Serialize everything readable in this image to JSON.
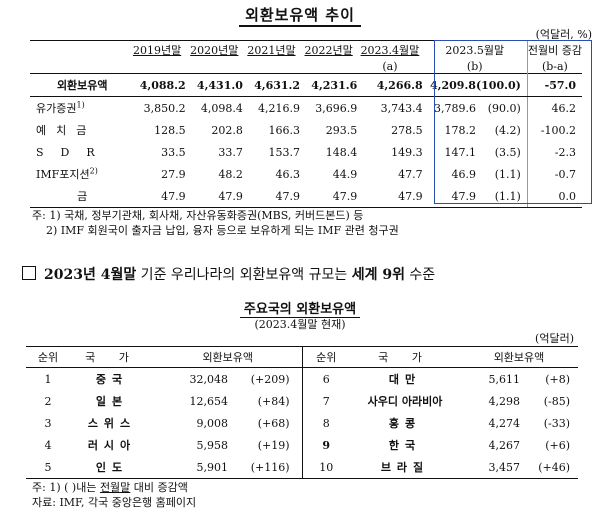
{
  "title": "외환보유액 추이",
  "unit": "(억달러, %)",
  "table": {
    "headers": {
      "years": [
        "2019년말",
        "2020년말",
        "2021년말",
        "2022년말"
      ],
      "apr": "2023.4월말",
      "apr_sub": "(a)",
      "may": "2023.5월말",
      "may_sub": "(b)",
      "diff": "전월비 증감",
      "diff_sub": "(b-a)"
    },
    "total": {
      "label": "외환보유액",
      "values": [
        "4,088.2",
        "4,431.0",
        "4,631.2",
        "4,231.6",
        "4,266.8",
        "4,209.8"
      ],
      "share": "(100.0)",
      "diff": "-57.0"
    },
    "rows": [
      {
        "label": "유가증권",
        "sup": "1)",
        "values": [
          "3,850.2",
          "4,098.4",
          "4,216.9",
          "3,696.9",
          "3,743.4",
          "3,789.6"
        ],
        "share": "(90.0)",
        "diff": "46.2"
      },
      {
        "label": "예치금",
        "sup": "",
        "values": [
          "128.5",
          "202.8",
          "166.3",
          "293.5",
          "278.5",
          "178.2"
        ],
        "share": "(4.2)",
        "diff": "-100.2"
      },
      {
        "label": "SDR",
        "sup": "",
        "values": [
          "33.5",
          "33.7",
          "153.7",
          "148.4",
          "149.3",
          "147.1"
        ],
        "share": "(3.5)",
        "diff": "-2.3"
      },
      {
        "label": "IMF포지션",
        "sup": "2)",
        "values": [
          "27.9",
          "48.2",
          "46.3",
          "44.9",
          "47.7",
          "46.9"
        ],
        "share": "(1.1)",
        "diff": "-0.7"
      },
      {
        "label": "금",
        "sup": "",
        "values": [
          "47.9",
          "47.9",
          "47.9",
          "47.9",
          "47.9",
          "47.9"
        ],
        "share": "(1.1)",
        "diff": "0.0"
      }
    ]
  },
  "notes1": [
    "주: 1) 국채, 정부기관채, 회사채, 자산유동화증권(MBS, 커버드본드) 등",
    "2) IMF 회원국이 출자금 납입, 융자 등으로 보유하게 되는 IMF 관련 청구권"
  ],
  "headline": {
    "pre": "2023년 4월말",
    "mid": " 기준 우리나라의 외환보유액 규모는 ",
    "bold": "세계 9위",
    "post": " 수준"
  },
  "ranking": {
    "title": "주요국의 외환보유액",
    "subtitle": "(2023.4월말 현재)",
    "unit": "(억달러)",
    "headers": {
      "rank": "순위",
      "country": "국 가",
      "reserves": "외환보유액"
    },
    "rows": [
      {
        "left": {
          "rank": "1",
          "country": "중국",
          "amount": "32,048",
          "change": "(+209)"
        },
        "right": {
          "rank": "6",
          "country": "대만",
          "amount": "5,611",
          "change": "(+8)"
        }
      },
      {
        "left": {
          "rank": "2",
          "country": "일본",
          "amount": "12,654",
          "change": "(+84)"
        },
        "right": {
          "rank": "7",
          "country": "사우디 아라비아",
          "amount": "4,298",
          "change": "(-85)"
        }
      },
      {
        "left": {
          "rank": "3",
          "country": "스위스",
          "amount": "9,008",
          "change": "(+68)"
        },
        "right": {
          "rank": "8",
          "country": "홍콩",
          "amount": "4,274",
          "change": "(-33)"
        }
      },
      {
        "left": {
          "rank": "4",
          "country": "러시아",
          "amount": "5,958",
          "change": "(+19)"
        },
        "right": {
          "rank": "9",
          "country": "한국",
          "amount": "4,267",
          "change": "(+6)"
        }
      },
      {
        "left": {
          "rank": "5",
          "country": "인도",
          "amount": "5,901",
          "change": "(+116)"
        },
        "right": {
          "rank": "10",
          "country": "브라질",
          "amount": "3,457",
          "change": "(+46)"
        }
      }
    ]
  },
  "notes2": {
    "line1_pre": "주: 1) ( )내는 ",
    "line1_u": "전월말",
    "line1_post": " 대비 증감액",
    "line2": "자료: IMF, 각국 중앙은행 홈페이지"
  }
}
